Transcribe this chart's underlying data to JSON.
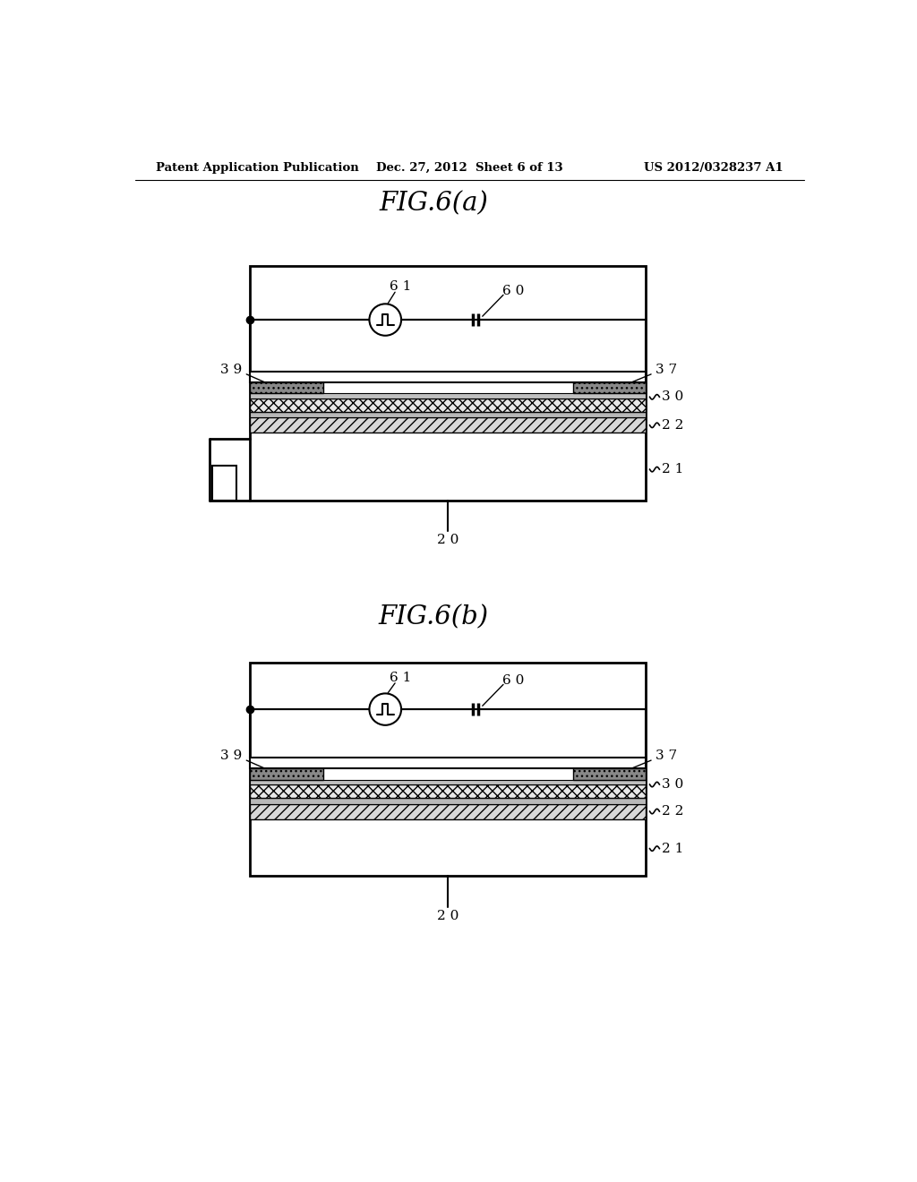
{
  "bg_color": "#ffffff",
  "header_left": "Patent Application Publication",
  "header_center": "Dec. 27, 2012  Sheet 6 of 13",
  "header_right": "US 2012/0328237 A1",
  "fig_a_title": "FIG.6(a)",
  "fig_b_title": "FIG.6(b)"
}
